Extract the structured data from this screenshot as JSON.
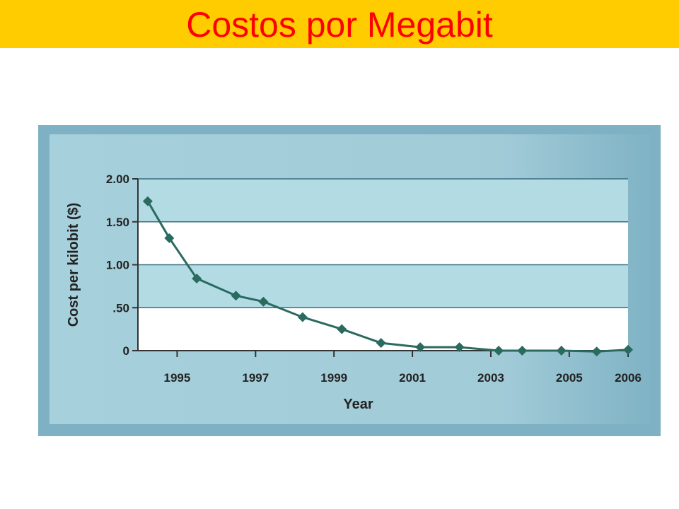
{
  "page": {
    "title": "Costos por Megabit"
  },
  "colors": {
    "title_bg": "#ffcc00",
    "title_text": "#ff0000",
    "panel_bg": "#9fcad8",
    "panel_border": "#6ea3b6",
    "band_shaded": "#b2dbe4",
    "band_white": "#ffffff",
    "series": "#2a6a5f"
  },
  "chart_data": {
    "type": "line",
    "title": "",
    "xlabel": "Year",
    "ylabel": "Cost per kilobit ($)",
    "ylim": [
      0,
      2.0
    ],
    "xlim": [
      1994,
      2006.5
    ],
    "y_ticks": [
      {
        "value": 2.0,
        "label": "2.00"
      },
      {
        "value": 1.5,
        "label": "1.50"
      },
      {
        "value": 1.0,
        "label": "1.00"
      },
      {
        "value": 0.5,
        "label": ".50"
      },
      {
        "value": 0.0,
        "label": "0"
      }
    ],
    "x_ticks": [
      {
        "value": 1995,
        "label": "1995"
      },
      {
        "value": 1997,
        "label": "1997"
      },
      {
        "value": 1999,
        "label": "1999"
      },
      {
        "value": 2001,
        "label": "2001"
      },
      {
        "value": 2003,
        "label": "2003"
      },
      {
        "value": 2005,
        "label": "2005"
      },
      {
        "value": 2006.5,
        "label": "2006"
      }
    ],
    "grid": "horizontal alternating bands",
    "series": [
      {
        "x": [
          1994.25,
          1994.8,
          1995.5,
          1996.5,
          1997.2,
          1998.2,
          1999.2,
          2000.2,
          2001.2,
          2002.2,
          2003.2,
          2003.8,
          2004.8,
          2005.7,
          2006.5
        ],
        "values": [
          1.74,
          1.31,
          0.84,
          0.64,
          0.57,
          0.39,
          0.25,
          0.09,
          0.04,
          0.04,
          0.0,
          0.0,
          0.0,
          -0.01,
          0.01
        ]
      }
    ]
  }
}
